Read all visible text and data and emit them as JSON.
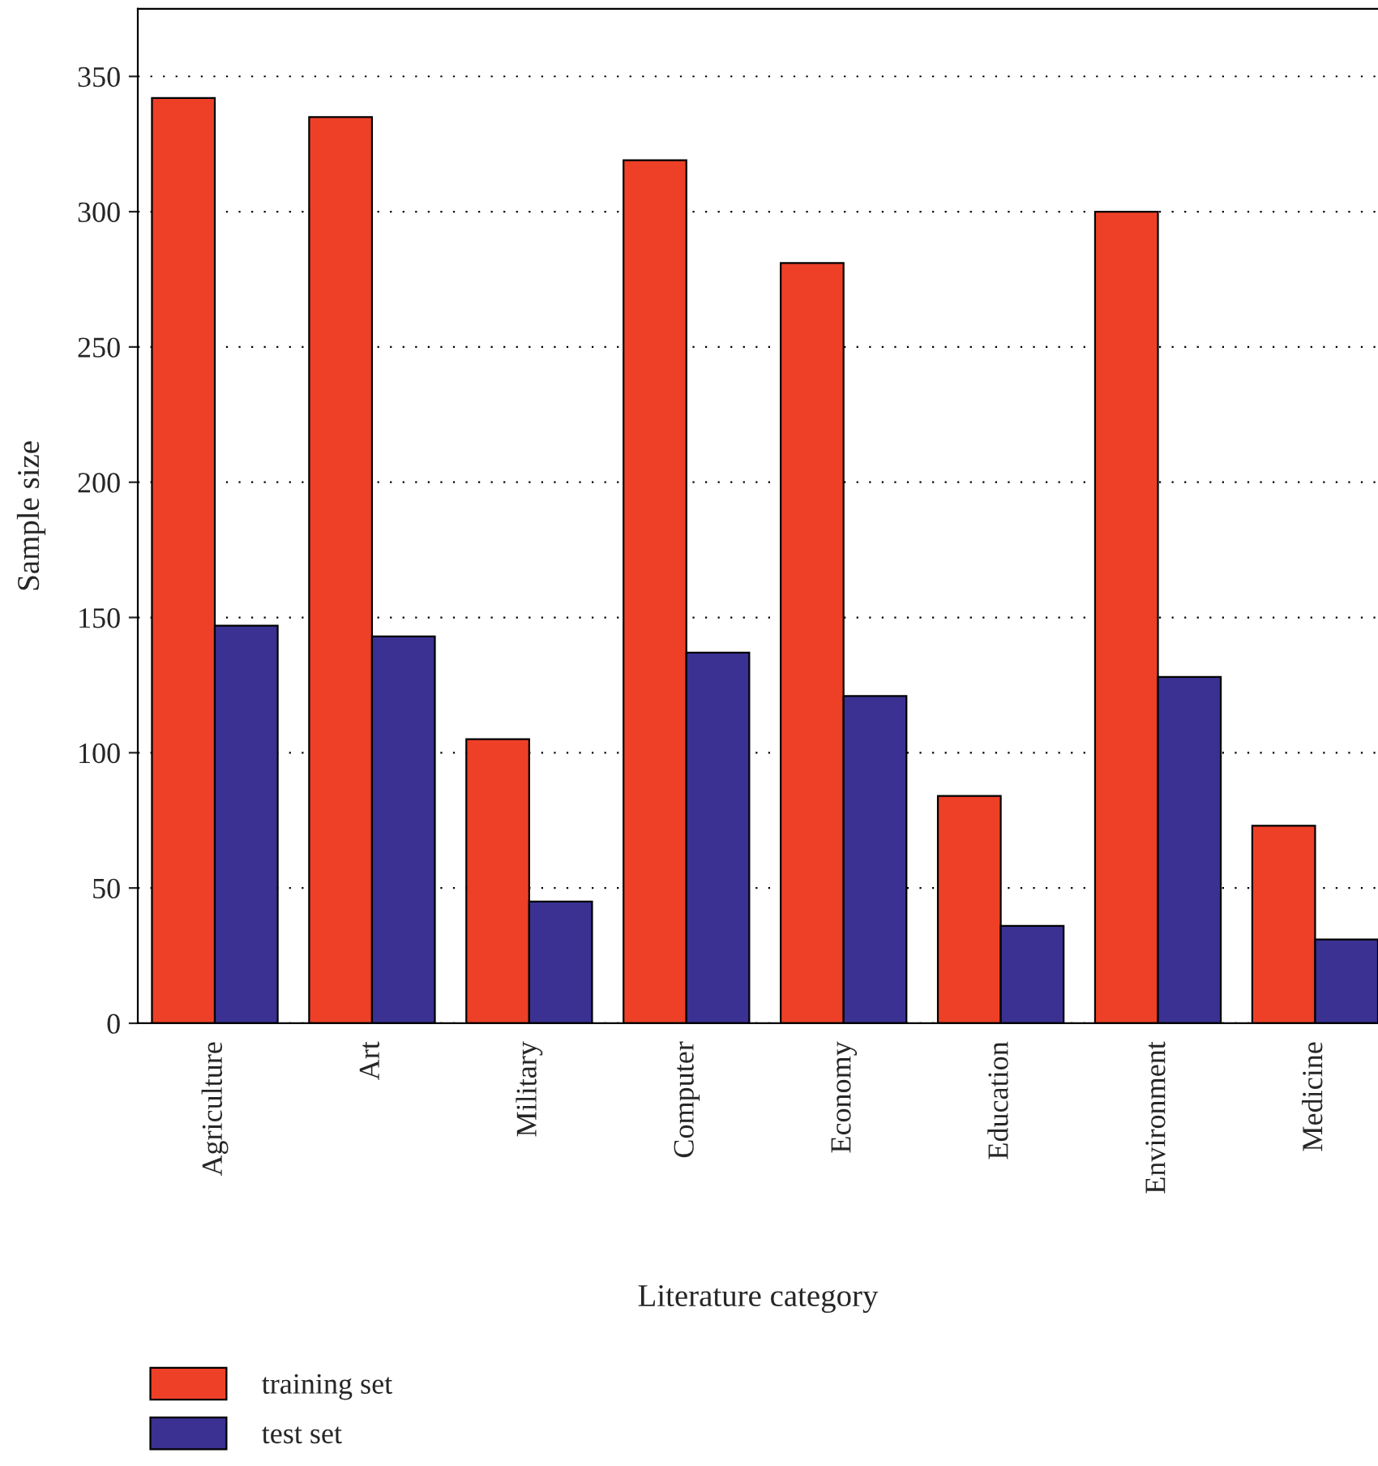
{
  "chart_data": {
    "type": "bar",
    "xlabel": "Literature category",
    "ylabel": "Sample size",
    "categories": [
      "Agriculture",
      "Art",
      "Military",
      "Computer",
      "Economy",
      "Education",
      "Environment",
      "Medicine"
    ],
    "series": [
      {
        "name": "training set",
        "color": "#ee4027",
        "values": [
          342,
          335,
          105,
          319,
          281,
          84,
          300,
          73
        ]
      },
      {
        "name": "test set",
        "color": "#3a3192",
        "values": [
          147,
          143,
          45,
          137,
          121,
          36,
          128,
          31
        ]
      }
    ],
    "ylim": [
      0,
      375
    ],
    "yticks": [
      0,
      50,
      100,
      150,
      200,
      250,
      300,
      350
    ],
    "grid": "y",
    "legend": "bottom"
  }
}
